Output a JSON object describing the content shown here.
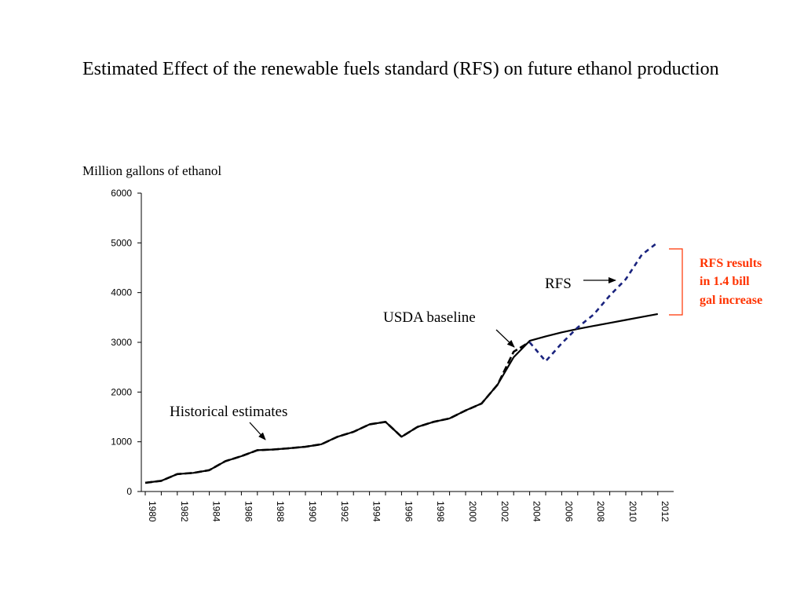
{
  "slide": {
    "title": "Estimated Effect of the renewable fuels standard (RFS) on future ethanol production",
    "y_unit": "Million gallons of ethanol"
  },
  "chart_data": {
    "type": "line",
    "title": "",
    "xlabel": "",
    "ylabel": "Million gallons of ethanol",
    "ylim": [
      0,
      6000
    ],
    "yticks": [
      0,
      1000,
      2000,
      3000,
      4000,
      5000,
      6000
    ],
    "xlim": [
      1980,
      2012
    ],
    "xticks": [
      1980,
      1982,
      1984,
      1986,
      1988,
      1990,
      1992,
      1994,
      1996,
      1998,
      2000,
      2002,
      2004,
      2006,
      2008,
      2010,
      2012
    ],
    "grid": false,
    "legend": "none",
    "series": [
      {
        "name": "Historical estimates",
        "style": "dashed",
        "color": "#000000",
        "x": [
          1980,
          1981,
          1982,
          1983,
          1984,
          1985,
          1986,
          1987,
          1988,
          1989,
          1990,
          1991,
          1992,
          1993,
          1994,
          1995,
          1996,
          1997,
          1998,
          1999,
          2000,
          2001,
          2002,
          2003,
          2004
        ],
        "y": [
          175,
          215,
          350,
          375,
          430,
          610,
          710,
          830,
          845,
          870,
          900,
          950,
          1100,
          1200,
          1350,
          1400,
          1100,
          1300,
          1400,
          1470,
          1630,
          1770,
          2150,
          2810,
          3010
        ]
      },
      {
        "name": "USDA baseline",
        "style": "solid",
        "color": "#000000",
        "x": [
          1980,
          1981,
          1982,
          1983,
          1984,
          1985,
          1986,
          1987,
          1988,
          1989,
          1990,
          1991,
          1992,
          1993,
          1994,
          1995,
          1996,
          1997,
          1998,
          1999,
          2000,
          2001,
          2002,
          2003,
          2004,
          2005,
          2006,
          2007,
          2008,
          2009,
          2010,
          2011,
          2012
        ],
        "y": [
          175,
          215,
          350,
          375,
          430,
          610,
          710,
          830,
          845,
          870,
          900,
          950,
          1100,
          1200,
          1350,
          1400,
          1100,
          1300,
          1400,
          1470,
          1630,
          1770,
          2150,
          2700,
          3030,
          3120,
          3200,
          3270,
          3330,
          3390,
          3450,
          3510,
          3570
        ]
      },
      {
        "name": "RFS",
        "style": "dotted",
        "color": "#1a237e",
        "x": [
          2004,
          2005,
          2006,
          2007,
          2008,
          2009,
          2010,
          2011,
          2012
        ],
        "y": [
          3000,
          2620,
          2980,
          3300,
          3560,
          3940,
          4270,
          4760,
          5010
        ]
      }
    ],
    "annotations": {
      "historical": "Historical estimates",
      "usda": "USDA baseline",
      "rfs": "RFS",
      "rfs_result_lines": [
        "RFS results",
        "in 1.4 bill",
        "gal increase"
      ]
    },
    "colors": {
      "rfs_line": "#1a237e",
      "rfs_result_text": "#ff3300",
      "bracket": "#ff3300"
    }
  }
}
